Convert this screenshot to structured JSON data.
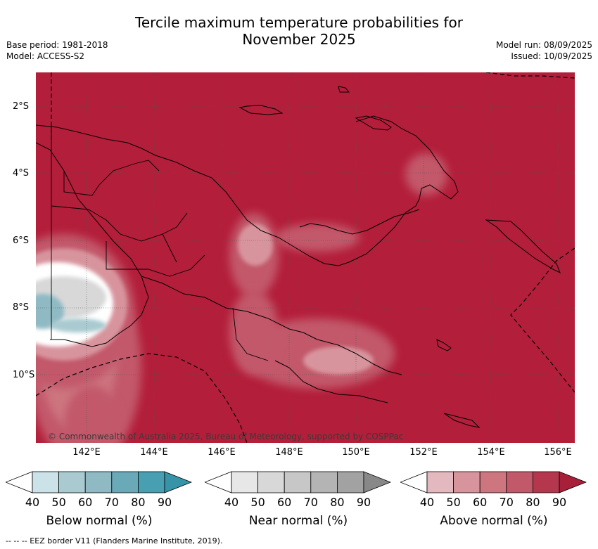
{
  "title_line1": "Tercile maximum temperature probabilities for",
  "title_line2": "November 2025",
  "base_period": "Base period: 1981-2018",
  "model": "Model: ACCESS-S2",
  "model_run": "Model run: 08/09/2025",
  "issued": "Issued: 10/09/2025",
  "map": {
    "lat_labels": [
      "2°S",
      "4°S",
      "6°S",
      "8°S",
      "10°S"
    ],
    "lon_labels": [
      "142°E",
      "144°E",
      "146°E",
      "148°E",
      "150°E",
      "152°E",
      "154°E",
      "156°E"
    ],
    "copyright": "© Commonwealth of Australia 2025, Bureau of Meteorology, supported by COSPPac",
    "background_color": "#b31e3a"
  },
  "colorbars": [
    {
      "title": "Below normal (%)",
      "ticks": [
        "40",
        "50",
        "60",
        "70",
        "80",
        "90"
      ],
      "colors": [
        "#cbe3e8",
        "#a9cad0",
        "#8fbac4",
        "#6aa9b8",
        "#479fb1",
        "#3793a7"
      ]
    },
    {
      "title": "Near normal (%)",
      "ticks": [
        "40",
        "50",
        "60",
        "70",
        "80",
        "90"
      ],
      "colors": [
        "#e7e7e7",
        "#d8d8d8",
        "#c7c7c7",
        "#b4b4b4",
        "#a2a2a2",
        "#888888"
      ]
    },
    {
      "title": "Above normal (%)",
      "ticks": [
        "40",
        "50",
        "60",
        "70",
        "80",
        "90"
      ],
      "colors": [
        "#e3b8be",
        "#d8949d",
        "#cd7680",
        "#c2596a",
        "#b5374e",
        "#a81f3a"
      ]
    }
  ],
  "footer": "--  --  -- EEZ border V11 (Flanders Marine Institute, 2019)."
}
